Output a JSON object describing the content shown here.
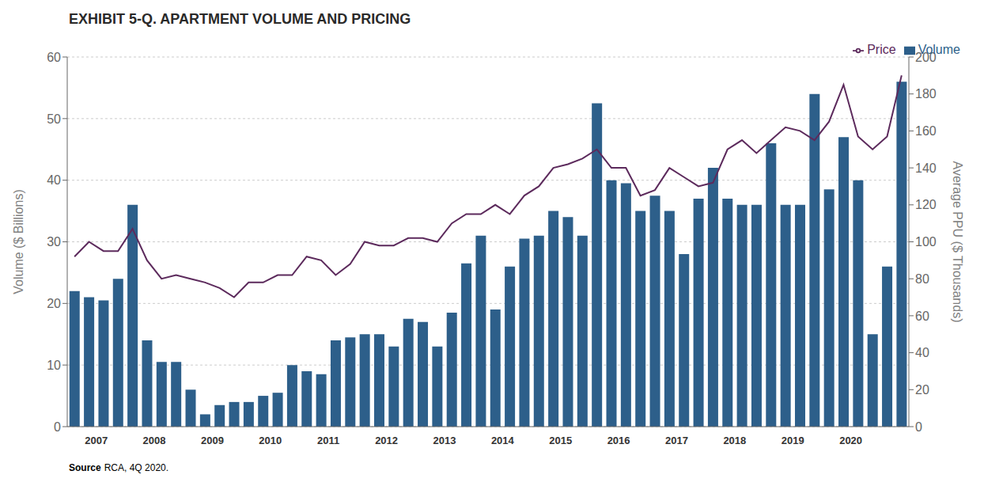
{
  "chart_data": {
    "type": "bar",
    "title": "EXHIBIT 5-Q. APARTMENT VOLUME AND PRICING",
    "y_label": "Volume ($ Billions)",
    "y2_label": "Average PPU ($ Thousands)",
    "annotations": [
      "Source",
      "RCA, 4Q 2020."
    ],
    "categories": [
      null,
      "2007",
      null,
      null,
      null,
      "2008",
      null,
      null,
      null,
      "2009",
      null,
      null,
      null,
      "2010",
      null,
      null,
      null,
      "2011",
      null,
      null,
      null,
      "2012",
      null,
      null,
      null,
      "2013",
      null,
      null,
      null,
      "2014",
      null,
      null,
      null,
      "2015",
      null,
      null,
      null,
      "2016",
      null,
      null,
      null,
      "2017",
      null,
      null,
      null,
      "2018",
      null,
      null,
      null,
      "2019",
      null,
      null,
      null,
      "2020",
      null,
      null,
      null,
      null
    ],
    "series": [
      {
        "name": "Volume",
        "type": "bar",
        "color": "#2D5F8A",
        "values": [
          22,
          21,
          20.5,
          24,
          36,
          14,
          10.5,
          10.5,
          6,
          2,
          3.5,
          4,
          4,
          5,
          5.5,
          10,
          9,
          8.5,
          14,
          14.5,
          15,
          15,
          13,
          17.5,
          17,
          13,
          18.5,
          26.5,
          31,
          19,
          26,
          30.5,
          31,
          35,
          34,
          31,
          52.5,
          40,
          39.5,
          35,
          37.5,
          35,
          28,
          37,
          42,
          37,
          36,
          36,
          46,
          36,
          36,
          54,
          38.5,
          47,
          40,
          15,
          26,
          56
        ]
      },
      {
        "name": "Price",
        "type": "line",
        "color": "#5C2A5C",
        "axis": "y2",
        "values": [
          92,
          100,
          95,
          95,
          107,
          90,
          80,
          82,
          80,
          78,
          75,
          70,
          78,
          78,
          82,
          82,
          92,
          90,
          82,
          88,
          100,
          98,
          98,
          102,
          102,
          100,
          110,
          115,
          115,
          120,
          115,
          125,
          130,
          140,
          142,
          145,
          150,
          140,
          140,
          125,
          128,
          140,
          135,
          130,
          132,
          150,
          155,
          148,
          155,
          162,
          160,
          155,
          165,
          185,
          157,
          150,
          157,
          190
        ]
      }
    ],
    "ylim": [
      0,
      60
    ],
    "yticks": [
      0,
      10,
      20,
      30,
      40,
      50,
      60
    ],
    "y2lim": [
      0,
      200
    ],
    "y2ticks": [
      0,
      20,
      40,
      60,
      80,
      100,
      120,
      140,
      160,
      180,
      200
    ],
    "grid": true,
    "legend": "upper right"
  }
}
